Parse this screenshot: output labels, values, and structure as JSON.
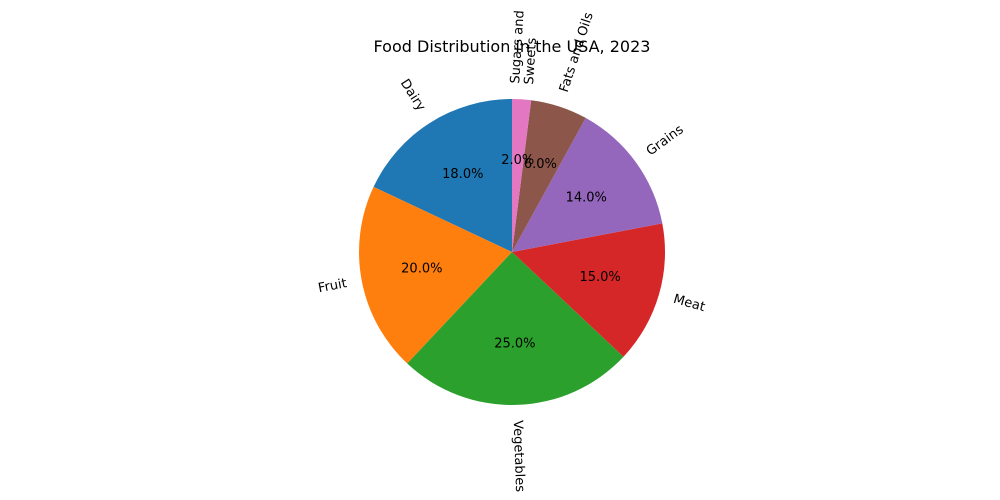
{
  "chart_data": {
    "type": "pie",
    "title": "Food Distribution in the USA, 2023",
    "start_angle_deg": 90,
    "direction": "counterclockwise",
    "slices": [
      {
        "label": "Dairy",
        "label_lines": [
          "Dairy"
        ],
        "value": 18,
        "pct_label": "18.0%",
        "color": "#1f77b4"
      },
      {
        "label": "Fruit",
        "label_lines": [
          "Fruit"
        ],
        "value": 20,
        "pct_label": "20.0%",
        "color": "#ff7f0e"
      },
      {
        "label": "Vegetables",
        "label_lines": [
          "Vegetables"
        ],
        "value": 25,
        "pct_label": "25.0%",
        "color": "#2ca02c"
      },
      {
        "label": "Meat",
        "label_lines": [
          "Meat"
        ],
        "value": 15,
        "pct_label": "15.0%",
        "color": "#d62728"
      },
      {
        "label": "Grains",
        "label_lines": [
          "Grains"
        ],
        "value": 14,
        "pct_label": "14.0%",
        "color": "#9467bd"
      },
      {
        "label": "Fats and Oils",
        "label_lines": [
          "Fats and Oils"
        ],
        "value": 6,
        "pct_label": "6.0%",
        "color": "#8c564b"
      },
      {
        "label": "Sugars and Sweets",
        "label_lines": [
          "Sugars and",
          "Sweets"
        ],
        "value": 2,
        "pct_label": "2.0%",
        "color": "#e377c2"
      }
    ]
  }
}
